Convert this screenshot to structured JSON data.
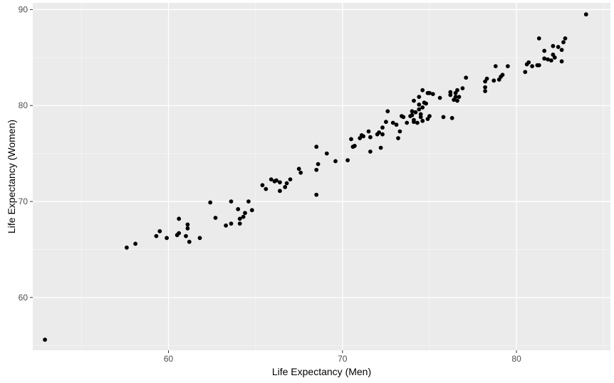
{
  "chart_data": {
    "type": "scatter",
    "title": "",
    "xlabel": "Life Expectancy (Men)",
    "ylabel": "Life Expectancy (Women)",
    "xlim": [
      52.2,
      85.4
    ],
    "ylim": [
      54.5,
      90.7
    ],
    "xticks": [
      60,
      70,
      80
    ],
    "yticks": [
      60,
      70,
      80,
      90
    ],
    "x_tick_labels": [
      "60",
      "70",
      "80"
    ],
    "y_tick_labels": [
      "60",
      "70",
      "80",
      "90"
    ],
    "grid": true,
    "legend": "none",
    "colors": {
      "panel": "#ebebeb",
      "grid_major": "#ffffff",
      "grid_minor": "#f5f5f5",
      "point": "#000000",
      "tick_text": "#4d4d4d"
    },
    "points": [
      [
        52.9,
        55.6
      ],
      [
        57.6,
        65.2
      ],
      [
        58.1,
        65.6
      ],
      [
        59.3,
        66.4
      ],
      [
        59.5,
        66.9
      ],
      [
        59.9,
        66.2
      ],
      [
        60.5,
        66.5
      ],
      [
        60.6,
        66.7
      ],
      [
        60.6,
        68.2
      ],
      [
        61.0,
        66.4
      ],
      [
        61.1,
        67.6
      ],
      [
        61.1,
        67.2
      ],
      [
        61.2,
        65.8
      ],
      [
        61.8,
        66.2
      ],
      [
        62.4,
        69.9
      ],
      [
        62.7,
        68.3
      ],
      [
        63.3,
        67.5
      ],
      [
        63.6,
        67.7
      ],
      [
        63.6,
        70.0
      ],
      [
        64.0,
        69.2
      ],
      [
        64.1,
        68.2
      ],
      [
        64.1,
        67.7
      ],
      [
        64.3,
        68.4
      ],
      [
        64.4,
        68.8
      ],
      [
        64.6,
        70.0
      ],
      [
        64.8,
        69.1
      ],
      [
        65.4,
        71.7
      ],
      [
        65.6,
        71.3
      ],
      [
        65.9,
        72.3
      ],
      [
        66.1,
        72.1
      ],
      [
        66.2,
        72.2
      ],
      [
        66.4,
        71.1
      ],
      [
        66.4,
        72.0
      ],
      [
        66.7,
        71.5
      ],
      [
        66.8,
        71.9
      ],
      [
        67.0,
        72.3
      ],
      [
        67.5,
        73.4
      ],
      [
        67.6,
        73.0
      ],
      [
        68.5,
        75.7
      ],
      [
        68.5,
        73.3
      ],
      [
        68.5,
        70.7
      ],
      [
        68.6,
        73.9
      ],
      [
        69.1,
        75.0
      ],
      [
        69.6,
        74.2
      ],
      [
        70.3,
        74.3
      ],
      [
        70.5,
        76.5
      ],
      [
        70.6,
        75.7
      ],
      [
        70.7,
        75.8
      ],
      [
        71.0,
        76.6
      ],
      [
        71.1,
        76.9
      ],
      [
        71.2,
        76.8
      ],
      [
        71.5,
        77.3
      ],
      [
        71.6,
        75.2
      ],
      [
        71.6,
        76.7
      ],
      [
        72.0,
        77.0
      ],
      [
        72.1,
        77.2
      ],
      [
        72.2,
        75.6
      ],
      [
        72.3,
        77.0
      ],
      [
        72.3,
        77.7
      ],
      [
        72.5,
        78.3
      ],
      [
        72.6,
        79.4
      ],
      [
        72.9,
        78.2
      ],
      [
        73.1,
        78.0
      ],
      [
        73.2,
        76.6
      ],
      [
        73.3,
        77.3
      ],
      [
        73.4,
        78.9
      ],
      [
        73.5,
        78.8
      ],
      [
        73.7,
        78.2
      ],
      [
        73.9,
        78.9
      ],
      [
        74.0,
        79.4
      ],
      [
        74.0,
        79.0
      ],
      [
        74.1,
        78.3
      ],
      [
        74.1,
        78.5
      ],
      [
        74.1,
        80.5
      ],
      [
        74.2,
        79.3
      ],
      [
        74.3,
        78.2
      ],
      [
        74.4,
        80.9
      ],
      [
        74.4,
        79.6
      ],
      [
        74.4,
        80.1
      ],
      [
        74.5,
        79.1
      ],
      [
        74.5,
        78.8
      ],
      [
        74.6,
        78.4
      ],
      [
        74.6,
        79.8
      ],
      [
        74.7,
        80.3
      ],
      [
        74.6,
        81.6
      ],
      [
        74.8,
        80.2
      ],
      [
        74.9,
        81.3
      ],
      [
        74.9,
        78.6
      ],
      [
        75.0,
        78.9
      ],
      [
        75.0,
        81.3
      ],
      [
        75.2,
        81.2
      ],
      [
        75.6,
        80.8
      ],
      [
        75.8,
        78.8
      ],
      [
        76.2,
        81.4
      ],
      [
        76.2,
        81.1
      ],
      [
        76.3,
        78.7
      ],
      [
        76.4,
        80.6
      ],
      [
        76.5,
        81.3
      ],
      [
        76.5,
        80.9
      ],
      [
        76.6,
        80.5
      ],
      [
        76.6,
        81.6
      ],
      [
        76.7,
        80.9
      ],
      [
        76.9,
        81.8
      ],
      [
        77.1,
        82.9
      ],
      [
        78.2,
        82.5
      ],
      [
        78.2,
        81.9
      ],
      [
        78.2,
        81.5
      ],
      [
        78.3,
        82.8
      ],
      [
        78.7,
        82.6
      ],
      [
        78.8,
        84.1
      ],
      [
        79.0,
        82.7
      ],
      [
        79.1,
        83.0
      ],
      [
        79.2,
        83.2
      ],
      [
        79.5,
        84.1
      ],
      [
        80.5,
        83.5
      ],
      [
        80.6,
        84.3
      ],
      [
        80.7,
        84.5
      ],
      [
        80.9,
        84.1
      ],
      [
        81.2,
        84.2
      ],
      [
        81.3,
        87.0
      ],
      [
        81.3,
        84.2
      ],
      [
        81.6,
        84.9
      ],
      [
        81.6,
        85.7
      ],
      [
        81.8,
        84.8
      ],
      [
        82.0,
        84.7
      ],
      [
        82.1,
        85.3
      ],
      [
        82.1,
        86.2
      ],
      [
        82.2,
        85.0
      ],
      [
        82.4,
        86.1
      ],
      [
        82.6,
        84.6
      ],
      [
        82.6,
        85.8
      ],
      [
        82.7,
        86.6
      ],
      [
        82.8,
        87.0
      ],
      [
        84.0,
        89.5
      ]
    ]
  }
}
